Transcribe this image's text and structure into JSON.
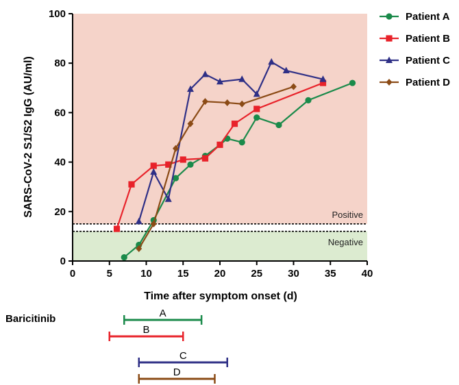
{
  "chart_data": {
    "type": "line",
    "xlabel": "Time after symptom onset (d)",
    "ylabel": "SARS-CoV-2 S1/S2 IgG (AU/ml)",
    "xlim": [
      0,
      40
    ],
    "ylim": [
      0,
      100
    ],
    "xticks": [
      0,
      5,
      10,
      15,
      20,
      25,
      30,
      35,
      40
    ],
    "yticks": [
      0,
      20,
      40,
      60,
      80,
      100
    ],
    "legend_position": "right",
    "positive_threshold": 15,
    "negative_threshold": 12,
    "zones": {
      "positive_label": "Positive",
      "negative_label": "Negative",
      "positive_color": "#f5d3c9",
      "negative_color": "#dcebd0"
    },
    "series": [
      {
        "name": "Patient A",
        "color": "#1a8a4a",
        "marker": "circle",
        "x": [
          7,
          9,
          11,
          14,
          16,
          18,
          20,
          21,
          23,
          25,
          28,
          32,
          38
        ],
        "y": [
          1.5,
          6.5,
          16.5,
          33.5,
          39,
          42.5,
          47,
          49.5,
          48,
          58,
          55,
          65,
          72
        ]
      },
      {
        "name": "Patient B",
        "color": "#e8222a",
        "marker": "square",
        "x": [
          6,
          8,
          11,
          13,
          15,
          18,
          20,
          22,
          25,
          34
        ],
        "y": [
          13,
          31,
          38.5,
          39,
          41,
          41.5,
          47,
          55.5,
          61.5,
          72
        ]
      },
      {
        "name": "Patient C",
        "color": "#2e2f86",
        "marker": "triangle",
        "x": [
          9,
          11,
          13,
          16,
          18,
          20,
          23,
          25,
          27,
          29,
          34
        ],
        "y": [
          16,
          36,
          25,
          69.5,
          75.5,
          72.5,
          73.5,
          67.5,
          80.5,
          77,
          73.5
        ]
      },
      {
        "name": "Patient D",
        "color": "#8b4b16",
        "marker": "diamond",
        "x": [
          9,
          11,
          14,
          16,
          18,
          21,
          23,
          30
        ],
        "y": [
          5,
          15,
          45.5,
          55.5,
          64.5,
          64,
          63.5,
          70.5
        ]
      }
    ],
    "treatment": {
      "label": "Baricitinib",
      "bars": [
        {
          "label": "A",
          "start": 7,
          "end": 17.5,
          "color": "#1a8a4a"
        },
        {
          "label": "B",
          "start": 5,
          "end": 15,
          "color": "#e8222a"
        },
        {
          "label": "C",
          "start": 9,
          "end": 21,
          "color": "#2e2f86"
        },
        {
          "label": "D",
          "start": 9,
          "end": 19.3,
          "color": "#8b4b16"
        }
      ]
    }
  }
}
